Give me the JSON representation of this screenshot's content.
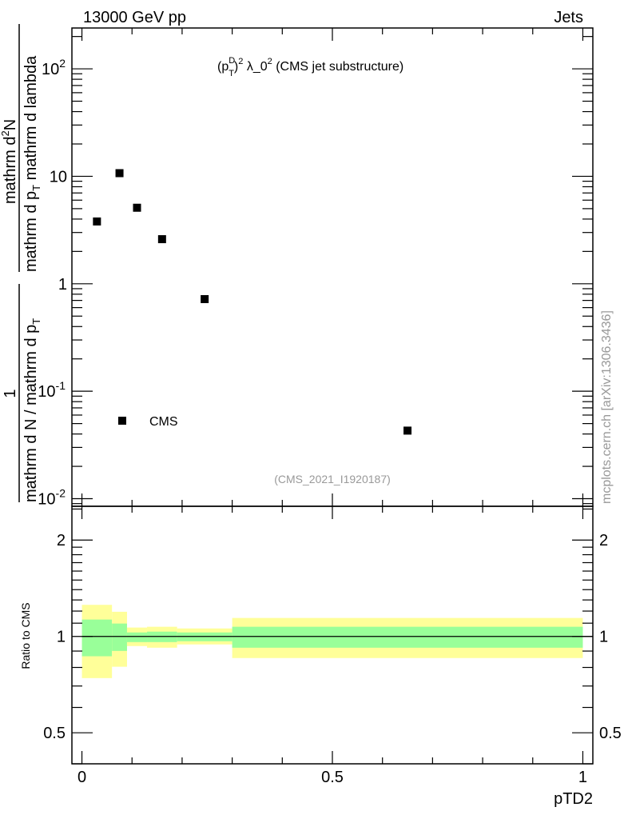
{
  "header": {
    "left": "13000 GeV pp",
    "right": "Jets"
  },
  "side_label": "mcplots.cern.ch [arXiv:1306.3436]",
  "ylabel": {
    "frac1_num": "1",
    "frac1_den": "mathrm d N / mathrm d p",
    "frac1_den_sub": "T",
    "frac2_num": "mathrm d",
    "frac2_num_sup": "2",
    "frac2_num_end": "N",
    "frac2_den": "mathrm d p",
    "frac2_den_sub": "T",
    "frac2_den_end": " mathrm d lambda"
  },
  "ratio_ylabel": "Ratio to CMS",
  "colors": {
    "band_total": "#ffff99",
    "band_stat": "#99ff99",
    "marker": "#000000"
  },
  "chart_data": {
    "type": "scatter",
    "title": "(p_T^D)^2 λ_0^2 (CMS jet substructure)",
    "title_parts": {
      "a": "(p",
      "sup": "D",
      "sub": "T",
      "b": ")",
      "sq": "2",
      "c": " λ_0",
      "sq2": "2",
      "d": " (CMS jet substructure)"
    },
    "analysis_id": "(CMS_2021_I1920187)",
    "xlabel": "pTD2",
    "xlim": [
      -0.02,
      1.02
    ],
    "ylim": [
      0.0085,
      240
    ],
    "yscale": "log",
    "xticks": [
      {
        "v": 0,
        "label": "0"
      },
      {
        "v": 0.5,
        "label": "0.5"
      },
      {
        "v": 1,
        "label": "1"
      }
    ],
    "yticks": [
      {
        "v": 0.01,
        "base": "10",
        "exp": "-2"
      },
      {
        "v": 0.1,
        "base": "10",
        "exp": "-1"
      },
      {
        "v": 1,
        "base": "1",
        "exp": ""
      },
      {
        "v": 10,
        "base": "10",
        "exp": ""
      },
      {
        "v": 100,
        "base": "10",
        "exp": "2"
      }
    ],
    "legend": [
      {
        "name": "CMS",
        "marker": "square"
      }
    ],
    "legend_position": "bottom-left",
    "series": [
      {
        "name": "CMS",
        "bin_edges": [
          0,
          0.06,
          0.09,
          0.13,
          0.19,
          0.3,
          1.0
        ],
        "x": [
          0.03,
          0.075,
          0.11,
          0.16,
          0.245,
          0.65
        ],
        "y": [
          3.8,
          10.7,
          5.1,
          2.6,
          0.72,
          0.043
        ]
      }
    ],
    "ratio": {
      "ylabel": "Ratio to CMS",
      "ylim": [
        0.4,
        2.55
      ],
      "yscale": "log",
      "yticks": [
        {
          "v": 0.5,
          "label": "0.5"
        },
        {
          "v": 1,
          "label": "1"
        },
        {
          "v": 2,
          "label": "2"
        }
      ],
      "total_up": [
        1.255,
        1.194,
        1.066,
        1.072,
        1.059,
        1.142
      ],
      "total_down": [
        0.741,
        0.804,
        0.933,
        0.922,
        0.944,
        0.856
      ],
      "stat_up": [
        1.129,
        1.097,
        1.029,
        1.035,
        1.029,
        1.072
      ],
      "stat_down": [
        0.867,
        0.901,
        0.96,
        0.96,
        0.966,
        0.922
      ]
    }
  }
}
